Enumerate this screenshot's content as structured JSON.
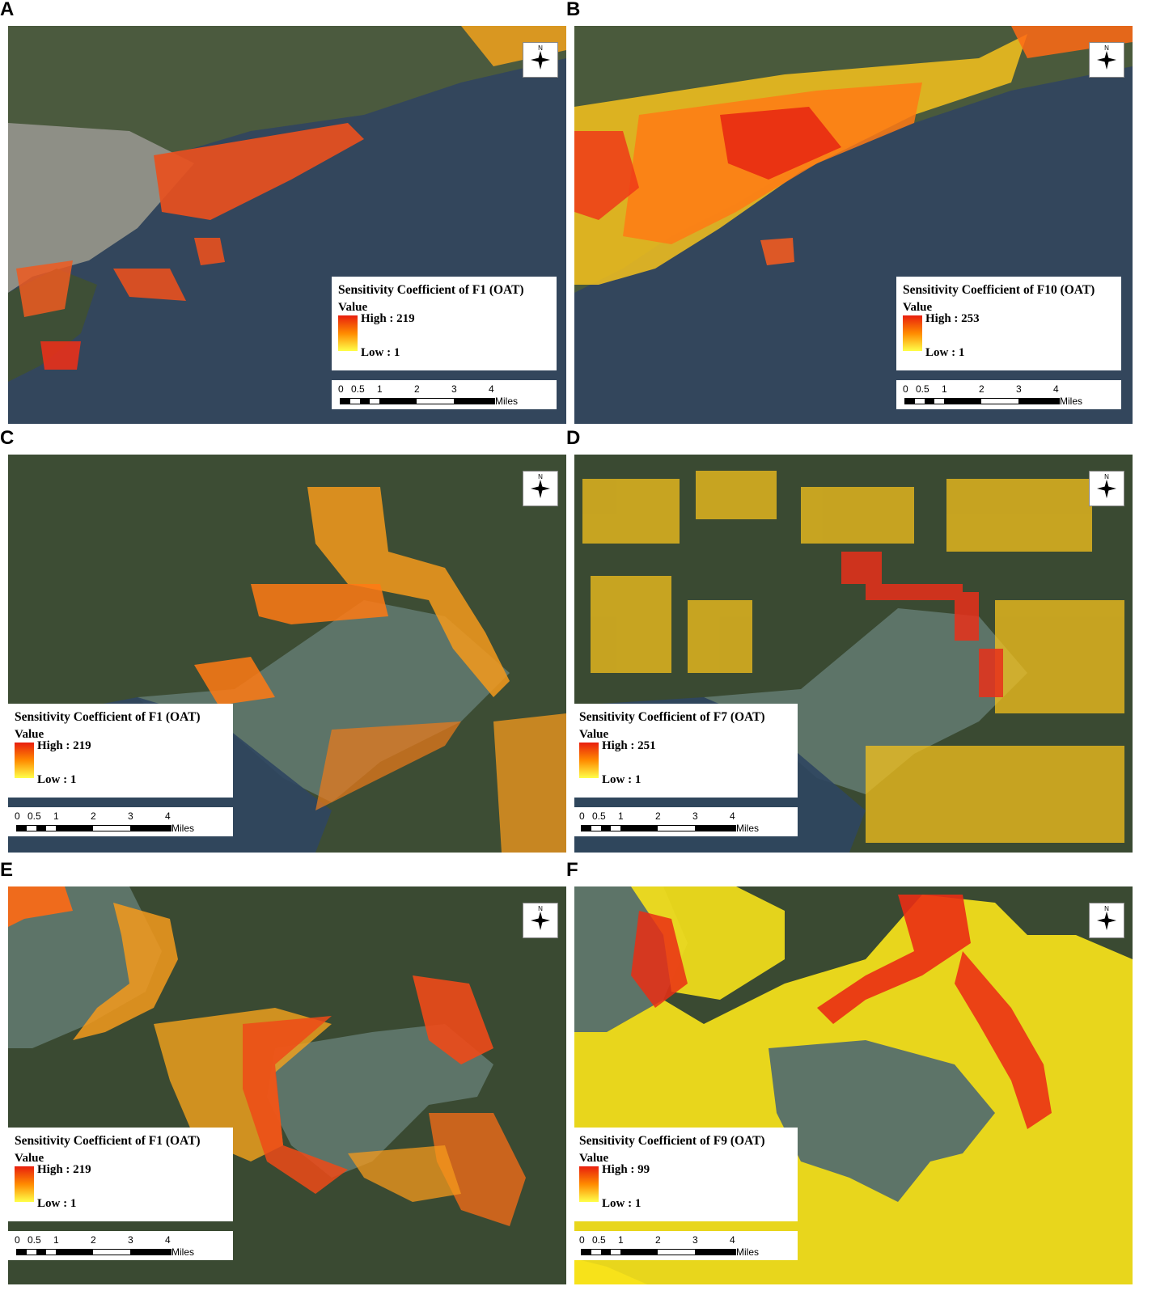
{
  "panels": [
    {
      "letter": "A",
      "title": "Sensitivity Coefficient of F1 (OAT)",
      "value_label": "Value",
      "high": "High : 219",
      "low": "Low : 1"
    },
    {
      "letter": "B",
      "title": "Sensitivity Coefficient of F10 (OAT)",
      "value_label": "Value",
      "high": "High : 253",
      "low": "Low : 1"
    },
    {
      "letter": "C",
      "title": "Sensitivity Coefficient of F1 (OAT)",
      "value_label": "Value",
      "high": "High : 219",
      "low": "Low : 1"
    },
    {
      "letter": "D",
      "title": "Sensitivity Coefficient of F7 (OAT)",
      "value_label": "Value",
      "high": "High : 251",
      "low": "Low : 1"
    },
    {
      "letter": "E",
      "title": "Sensitivity Coefficient of F1 (OAT)",
      "value_label": "Value",
      "high": "High : 219",
      "low": "Low : 1"
    },
    {
      "letter": "F",
      "title": "Sensitivity Coefficient of F9 (OAT)",
      "value_label": "Value",
      "high": "High : 99",
      "low": "Low : 1"
    }
  ],
  "scale": {
    "ticks": [
      "0",
      "0.5",
      "1",
      "2",
      "3",
      "4"
    ],
    "unit": "Miles"
  },
  "north_label": "N",
  "colors": {
    "high": "#e81e0e",
    "mid": "#ff8a00",
    "low": "#ffff4a",
    "water": "#2f4660",
    "land": "#3a4a32"
  }
}
